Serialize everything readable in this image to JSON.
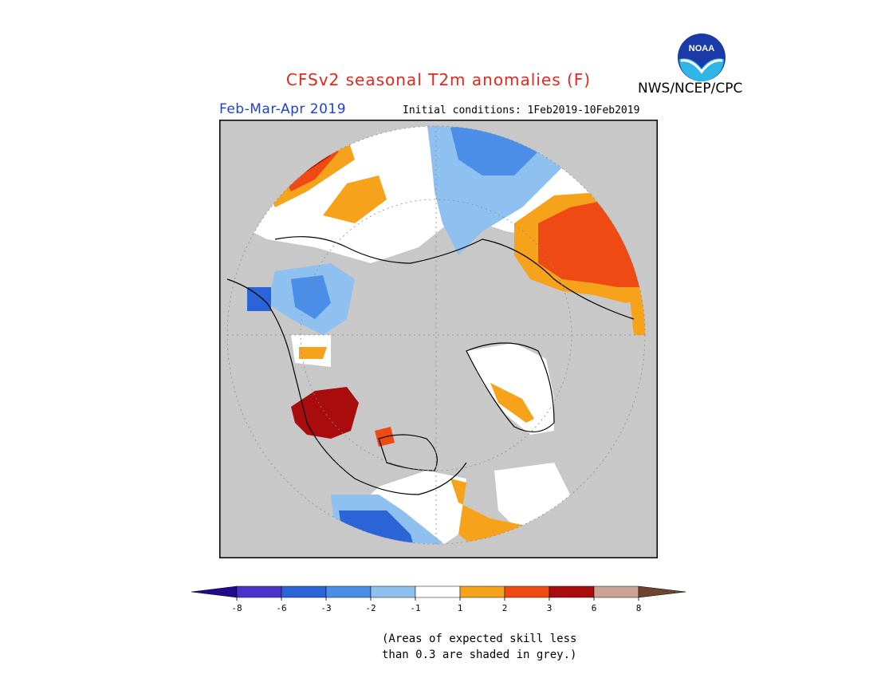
{
  "title": "CFSv2 seasonal T2m anomalies (F)",
  "period": "Feb-Mar-Apr 2019",
  "initial_conditions": "Initial conditions: 1Feb2019-10Feb2019",
  "agency": "NWS/NCEP/CPC",
  "logo_text": "NOAA",
  "note_line1": "(Areas of expected skill less",
  "note_line2": "than 0.3 are shaded in grey.)",
  "colors": {
    "title": "#e8261c",
    "period": "#1f3fd6",
    "grey_low_skill": "#c8c8c8",
    "land_outline": "#000000"
  },
  "legend": {
    "tick_labels": [
      "-8",
      "-6",
      "-3",
      "-2",
      "-1",
      "1",
      "2",
      "3",
      "6",
      "8"
    ],
    "bins": [
      {
        "color": "#220a8c"
      },
      {
        "color": "#4b32c8"
      },
      {
        "color": "#2a64d6"
      },
      {
        "color": "#4a8ee8"
      },
      {
        "color": "#8ec0f0"
      },
      {
        "color": "#ffffff"
      },
      {
        "color": "#f7a21b"
      },
      {
        "color": "#f04a14"
      },
      {
        "color": "#a80c0c"
      },
      {
        "color": "#caa394"
      },
      {
        "color": "#6e4430"
      }
    ]
  }
}
